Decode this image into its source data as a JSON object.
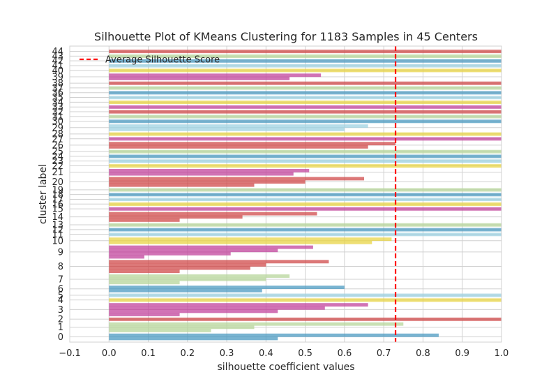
{
  "chart_data": {
    "type": "bar",
    "orientation": "horizontal",
    "title": "Silhouette Plot of KMeans Clustering for 1183 Samples in 45 Centers",
    "xlabel": "silhouette coefficient values",
    "ylabel": "cluster label",
    "xlim": [
      -0.1,
      1.0
    ],
    "xticks": [
      "−0.1",
      "0.0",
      "0.1",
      "0.2",
      "0.3",
      "0.4",
      "0.5",
      "0.6",
      "0.7",
      "0.8",
      "0.9",
      "1.0"
    ],
    "xtick_values": [
      -0.1,
      0.0,
      0.1,
      0.2,
      0.3,
      0.4,
      0.5,
      0.6,
      0.7,
      0.8,
      0.9,
      1.0
    ],
    "grid": true,
    "legend_position": "top-left",
    "average_silhouette_score": 0.73,
    "average_line_color": "#ff0000",
    "legend_label": "Average Silhouette Score",
    "palette": [
      "#4c9bc2",
      "#b7d59b",
      "#d04b4b",
      "#c1449c",
      "#e8d445",
      "#9ed2e2"
    ],
    "clusters": [
      {
        "label": "0",
        "values": [
          0.84,
          0.43
        ]
      },
      {
        "label": "1",
        "values": [
          0.75,
          0.37,
          0.26
        ]
      },
      {
        "label": "2",
        "values": [
          1.0
        ]
      },
      {
        "label": "3",
        "values": [
          0.66,
          0.55,
          0.43,
          0.18
        ]
      },
      {
        "label": "4",
        "values": [
          1.0
        ]
      },
      {
        "label": "5",
        "values": [
          1.0
        ]
      },
      {
        "label": "6",
        "values": [
          0.6,
          0.39
        ]
      },
      {
        "label": "7",
        "values": [
          0.46,
          0.4,
          0.18
        ]
      },
      {
        "label": "8",
        "values": [
          0.56,
          0.4,
          0.36,
          0.18
        ]
      },
      {
        "label": "9",
        "values": [
          0.52,
          0.43,
          0.31,
          0.09
        ]
      },
      {
        "label": "10",
        "values": [
          0.72,
          0.67
        ]
      },
      {
        "label": "11",
        "values": [
          1.0
        ]
      },
      {
        "label": "12",
        "values": [
          1.0
        ]
      },
      {
        "label": "13",
        "values": [
          1.0
        ]
      },
      {
        "label": "14",
        "values": [
          0.53,
          0.34,
          0.18
        ]
      },
      {
        "label": "15",
        "values": [
          1.0
        ]
      },
      {
        "label": "16",
        "values": [
          1.0
        ]
      },
      {
        "label": "17",
        "values": [
          1.0
        ]
      },
      {
        "label": "18",
        "values": [
          1.0
        ]
      },
      {
        "label": "19",
        "values": [
          1.0
        ]
      },
      {
        "label": "20",
        "values": [
          0.65,
          0.5,
          0.37
        ]
      },
      {
        "label": "21",
        "values": [
          0.51,
          0.47
        ]
      },
      {
        "label": "22",
        "values": [
          1.0
        ]
      },
      {
        "label": "23",
        "values": [
          1.0
        ]
      },
      {
        "label": "24",
        "values": [
          1.0
        ]
      },
      {
        "label": "25",
        "values": [
          1.0
        ]
      },
      {
        "label": "26",
        "values": [
          0.73,
          0.66
        ]
      },
      {
        "label": "27",
        "values": [
          1.0
        ]
      },
      {
        "label": "28",
        "values": [
          1.0
        ]
      },
      {
        "label": "29",
        "values": [
          0.66,
          0.6
        ]
      },
      {
        "label": "30",
        "values": [
          1.0
        ]
      },
      {
        "label": "31",
        "values": [
          1.0
        ]
      },
      {
        "label": "32",
        "values": [
          1.0
        ]
      },
      {
        "label": "33",
        "values": [
          1.0
        ]
      },
      {
        "label": "34",
        "values": [
          1.0
        ]
      },
      {
        "label": "35",
        "values": [
          1.0
        ]
      },
      {
        "label": "36",
        "values": [
          1.0
        ]
      },
      {
        "label": "37",
        "values": [
          1.0
        ]
      },
      {
        "label": "38",
        "values": [
          1.0
        ]
      },
      {
        "label": "39",
        "values": [
          0.54,
          0.46
        ]
      },
      {
        "label": "40",
        "values": [
          1.0
        ]
      },
      {
        "label": "41",
        "values": [
          1.0
        ]
      },
      {
        "label": "42",
        "values": [
          1.0
        ]
      },
      {
        "label": "43",
        "values": [
          1.0
        ]
      },
      {
        "label": "44",
        "values": [
          1.0
        ]
      }
    ]
  }
}
